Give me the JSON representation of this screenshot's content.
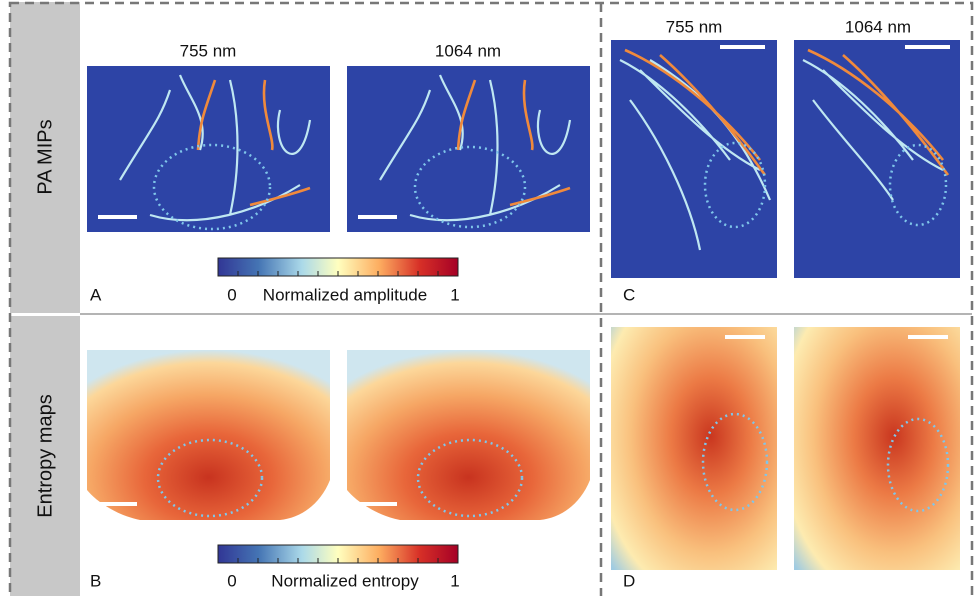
{
  "side_labels": [
    "PA MIPs",
    "Entropy maps"
  ],
  "panels": [
    {
      "letter": "A",
      "wavelengths": [
        "755 nm",
        "1064 nm"
      ],
      "colorbar": {
        "min": "0",
        "label": "Normalized amplitude",
        "max": "1"
      }
    },
    {
      "letter": "B",
      "colorbar": {
        "min": "0",
        "label": "Normalized entropy",
        "max": "1"
      }
    },
    {
      "letter": "C",
      "wavelengths": [
        "755 nm",
        "1064 nm"
      ]
    },
    {
      "letter": "D"
    }
  ]
}
